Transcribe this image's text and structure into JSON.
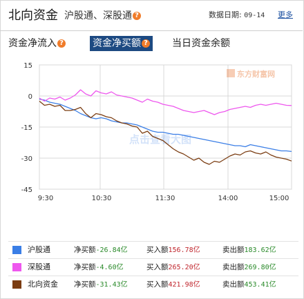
{
  "header": {
    "title": "北向资金",
    "subtitle": "沪股通、深股通",
    "date_label": "数据日期:",
    "date_value": "09-14",
    "more_link": "更多",
    "help_glyph": "?"
  },
  "tabs": [
    {
      "label": "资金净流入",
      "has_help": true,
      "active": false
    },
    {
      "label": "资金净买额",
      "has_help": true,
      "active": true
    },
    {
      "label": "当日资金余额",
      "has_help": false,
      "active": false
    }
  ],
  "watermark": {
    "text": "点击查看大图",
    "logo_text": "东方财富网"
  },
  "chart_data": {
    "type": "line",
    "title": "",
    "xlabel": "",
    "ylabel": "",
    "ylim": [
      -45,
      15
    ],
    "yticks": [
      15,
      0,
      -15,
      -30,
      -45
    ],
    "xticks": [
      "9:30",
      "10:30",
      "11:30",
      "14:00",
      "15:00"
    ],
    "grid": true,
    "series": [
      {
        "name": "沪股通",
        "color": "#3a7ee6",
        "values": [
          -1.5,
          -2,
          -3,
          -3.5,
          -4,
          -5,
          -6,
          -7,
          -8.5,
          -9.5,
          -10.5,
          -11,
          -10.5,
          -11,
          -12,
          -12.5,
          -13,
          -13,
          -13.5,
          -14,
          -15,
          -16,
          -17,
          -17.5,
          -17.5,
          -18,
          -18.5,
          -18.5,
          -19,
          -19.5,
          -20,
          -20.5,
          -21,
          -21.5,
          -22,
          -22.5,
          -23,
          -23.5,
          -24,
          -24,
          -24.5,
          -23.5,
          -24,
          -24.5,
          -25,
          -25.5,
          -26,
          -26.5,
          -26.5,
          -26.8
        ]
      },
      {
        "name": "深股通",
        "color": "#ee57ee",
        "values": [
          -1,
          -2.5,
          -1,
          -1.5,
          -0.5,
          -2,
          -1,
          0.5,
          3,
          1,
          0,
          2.5,
          1.5,
          1,
          2,
          0.5,
          0,
          -0.5,
          -1,
          -2,
          -3,
          -1.5,
          -2.5,
          -3,
          -4,
          -4.5,
          -5,
          -6,
          -7,
          -7.5,
          -8,
          -7.5,
          -7,
          -8,
          -9,
          -8,
          -7.5,
          -6.5,
          -6,
          -5.5,
          -5,
          -5.5,
          -4.5,
          -4,
          -4.5,
          -4,
          -3.5,
          -4,
          -4.5,
          -4.6
        ]
      },
      {
        "name": "北向资金",
        "color": "#7b3d12",
        "values": [
          -2.5,
          -4.5,
          -4,
          -5,
          -4.5,
          -7,
          -7,
          -6.5,
          -5.5,
          -8.5,
          -10.5,
          -8.5,
          -9,
          -10,
          -10.5,
          -12,
          -13,
          -13.5,
          -14.5,
          -15,
          -18,
          -17,
          -19.5,
          -20.5,
          -21.5,
          -23.5,
          -25.5,
          -27,
          -28,
          -29.5,
          -31,
          -30,
          -32,
          -33,
          -31.5,
          -32,
          -30.5,
          -29,
          -28,
          -28.5,
          -27,
          -26.5,
          -27.5,
          -28,
          -27,
          -28.5,
          -29.5,
          -30,
          -30.5,
          -31.4
        ]
      }
    ]
  },
  "legend": [
    {
      "name": "沪股通",
      "color": "#3a7ee6",
      "net_label": "净买额",
      "net_value": "-26.84亿",
      "buy_label": "买入额",
      "buy_value": "156.78亿",
      "sell_label": "卖出额",
      "sell_value": "183.62亿"
    },
    {
      "name": "深股通",
      "color": "#ee57ee",
      "net_label": "净买额",
      "net_value": "-4.60亿",
      "buy_label": "买入额",
      "buy_value": "265.20亿",
      "sell_label": "卖出额",
      "sell_value": "269.80亿"
    },
    {
      "name": "北向资金",
      "color": "#7b3d12",
      "net_label": "净买额",
      "net_value": "-31.43亿",
      "buy_label": "买入额",
      "buy_value": "421.98亿",
      "sell_label": "卖出额",
      "sell_value": "453.41亿"
    }
  ]
}
